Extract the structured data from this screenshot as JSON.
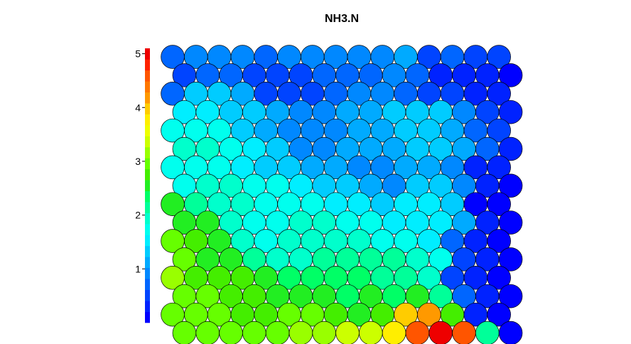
{
  "chart_data": {
    "type": "heatmap",
    "title": "NH3.N",
    "grid": {
      "rows": 16,
      "cols": 15,
      "topology": "hexagonal"
    },
    "colorbar": {
      "range": [
        0,
        5.1
      ],
      "ticks": [
        1,
        2,
        3,
        4,
        5
      ],
      "tick_labels": [
        "1",
        "2",
        "3",
        "4",
        "5"
      ],
      "colors": [
        "#0000ff",
        "#0022ff",
        "#0044ff",
        "#0066ff",
        "#0088ff",
        "#00aaff",
        "#00ccff",
        "#00eeff",
        "#00ffee",
        "#00ffcc",
        "#00ff99",
        "#00ff66",
        "#22ee22",
        "#44ee00",
        "#66ff00",
        "#99ff00",
        "#ccff00",
        "#eeff00",
        "#ffee00",
        "#ffcc00",
        "#ff9900",
        "#ff7700",
        "#ff5500",
        "#ff2200",
        "#ee0000"
      ]
    },
    "values": [
      [
        0.8,
        0.9,
        1.0,
        1.0,
        0.8,
        0.9,
        0.9,
        0.9,
        0.9,
        1.0,
        1.1,
        0.5,
        0.7,
        0.6,
        0.5
      ],
      [
        0.6,
        0.7,
        0.8,
        0.6,
        0.6,
        0.6,
        0.8,
        0.8,
        0.8,
        0.9,
        0.8,
        0.3,
        0.4,
        0.3,
        0.2
      ],
      [
        0.8,
        1.3,
        1.3,
        1.2,
        0.6,
        0.5,
        0.5,
        0.7,
        0.9,
        0.9,
        0.8,
        0.6,
        0.5,
        0.4,
        0.3
      ],
      [
        1.5,
        1.5,
        1.4,
        1.4,
        1.1,
        1.0,
        1.0,
        1.1,
        1.2,
        1.4,
        1.4,
        1.3,
        1.0,
        0.6,
        0.3
      ],
      [
        1.7,
        1.8,
        1.8,
        1.4,
        1.1,
        0.9,
        0.9,
        1.0,
        1.1,
        1.2,
        1.3,
        1.3,
        1.1,
        0.8,
        0.5
      ],
      [
        1.9,
        2.0,
        1.8,
        1.5,
        1.3,
        1.0,
        1.0,
        1.1,
        1.1,
        1.2,
        1.3,
        1.3,
        1.2,
        0.7,
        0.4
      ],
      [
        1.8,
        1.8,
        1.8,
        1.6,
        1.4,
        1.3,
        1.2,
        1.2,
        1.0,
        1.0,
        1.2,
        1.2,
        1.0,
        0.4,
        0.3
      ],
      [
        1.8,
        1.9,
        1.9,
        1.8,
        1.7,
        1.6,
        1.4,
        1.4,
        1.1,
        1.0,
        1.3,
        1.3,
        1.0,
        0.3,
        0.2
      ],
      [
        2.6,
        2.1,
        1.9,
        1.9,
        1.8,
        1.8,
        1.8,
        1.6,
        1.5,
        1.4,
        1.5,
        1.6,
        1.3,
        0.2,
        0.2
      ],
      [
        2.6,
        2.5,
        1.9,
        1.8,
        1.8,
        1.9,
        1.9,
        1.8,
        1.7,
        1.6,
        1.6,
        1.6,
        1.1,
        0.3,
        0.2
      ],
      [
        2.9,
        2.7,
        2.6,
        1.9,
        1.8,
        1.9,
        1.9,
        2.0,
        1.9,
        1.8,
        1.7,
        1.6,
        0.7,
        0.3,
        0.2
      ],
      [
        3.0,
        2.6,
        2.6,
        2.2,
        2.0,
        2.0,
        2.1,
        2.1,
        2.1,
        2.1,
        1.9,
        1.7,
        0.5,
        0.3,
        0.2
      ],
      [
        3.1,
        2.8,
        2.8,
        2.7,
        2.5,
        2.3,
        2.4,
        2.3,
        2.3,
        2.2,
        2.2,
        2.0,
        0.6,
        0.3,
        0.2
      ],
      [
        3.0,
        2.9,
        2.7,
        2.7,
        2.6,
        2.6,
        2.5,
        2.4,
        2.5,
        2.4,
        2.6,
        2.2,
        0.8,
        0.3,
        0.2
      ],
      [
        3.0,
        3.0,
        2.9,
        2.8,
        2.8,
        2.9,
        2.9,
        2.8,
        2.6,
        2.7,
        3.9,
        4.1,
        2.7,
        0.3,
        0.2
      ],
      [
        3.0,
        3.0,
        3.0,
        3.0,
        2.9,
        3.2,
        3.2,
        3.3,
        3.3,
        3.8,
        4.5,
        4.9,
        4.5,
        2.1,
        0.2
      ]
    ]
  }
}
